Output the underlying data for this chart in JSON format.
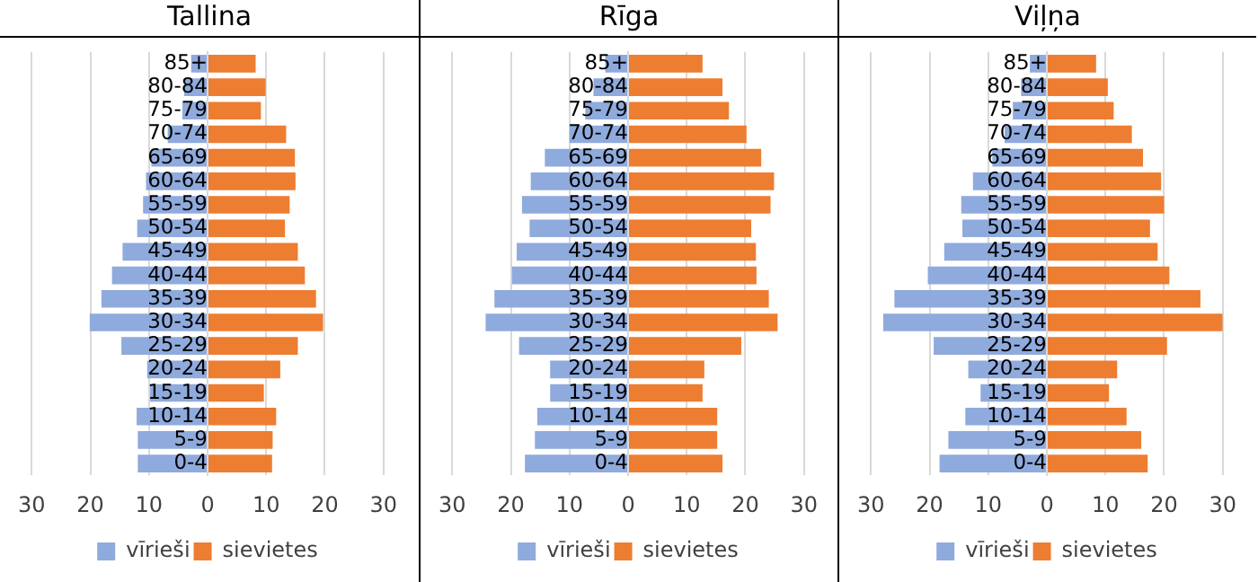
{
  "chart_data": [
    {
      "type": "bar",
      "orientation": "horizontal",
      "stacked": true,
      "title": "Tallina",
      "categories": [
        "85+",
        "80-84",
        "75-79",
        "70-74",
        "65-69",
        "60-64",
        "55-59",
        "50-54",
        "45-49",
        "40-44",
        "35-39",
        "30-34",
        "25-29",
        "20-24",
        "15-19",
        "10-14",
        "5-9",
        "0-4"
      ],
      "series": [
        {
          "name": "vīrieši",
          "color": "#8faadc",
          "values": [
            -2.8,
            -4,
            -4.3,
            -6.8,
            -9.6,
            -10.5,
            -11,
            -12,
            -14.5,
            -16.3,
            -18.1,
            -20.1,
            -14.7,
            -10.3,
            -9.8,
            -12.1,
            -11.9,
            -11.9
          ]
        },
        {
          "name": "sievietes",
          "color": "#ed7d31",
          "values": [
            8.2,
            9.9,
            9.1,
            13.4,
            14.9,
            15,
            14,
            13.2,
            15.4,
            16.6,
            18.5,
            19.7,
            15.4,
            12.4,
            9.6,
            11.7,
            11.1,
            11
          ]
        }
      ],
      "xlim": [
        -30,
        30
      ],
      "xticks": [
        {
          "value": -30,
          "label": "30"
        },
        {
          "value": -20,
          "label": "20"
        },
        {
          "value": -10,
          "label": "10"
        },
        0,
        10,
        20,
        30
      ],
      "grid": "x",
      "legend": "bottom"
    },
    {
      "type": "bar",
      "orientation": "horizontal",
      "stacked": true,
      "title": "Rīga",
      "categories": [
        "85+",
        "80-84",
        "75-79",
        "70-74",
        "65-69",
        "60-64",
        "55-59",
        "50-54",
        "45-49",
        "40-44",
        "35-39",
        "30-34",
        "25-29",
        "20-24",
        "15-19",
        "10-14",
        "5-9",
        "0-4"
      ],
      "series": [
        {
          "name": "vīrieši",
          "color": "#8faadc",
          "values": [
            -3.9,
            -5.9,
            -7.3,
            -10,
            -14.2,
            -16.6,
            -18.1,
            -16.8,
            -19,
            -19.8,
            -22.8,
            -24.3,
            -18.6,
            -13.3,
            -13.3,
            -15.5,
            -15.9,
            -17.6
          ]
        },
        {
          "name": "sievietes",
          "color": "#ed7d31",
          "values": [
            12.7,
            16.1,
            17.2,
            20.2,
            22.7,
            24.9,
            24.3,
            21,
            21.8,
            21.9,
            24,
            25.5,
            19.3,
            13,
            12.7,
            15.2,
            15.2,
            16.1
          ]
        }
      ],
      "xlim": [
        -30,
        30
      ],
      "xticks": [
        {
          "value": -30,
          "label": "30"
        },
        {
          "value": -20,
          "label": "20"
        },
        {
          "value": -10,
          "label": "10"
        },
        0,
        10,
        20,
        30
      ],
      "grid": "x",
      "legend": "bottom"
    },
    {
      "type": "bar",
      "orientation": "horizontal",
      "stacked": true,
      "title": "Viļņa",
      "categories": [
        "85+",
        "80-84",
        "75-79",
        "70-74",
        "65-69",
        "60-64",
        "55-59",
        "50-54",
        "45-49",
        "40-44",
        "35-39",
        "30-34",
        "25-29",
        "20-24",
        "15-19",
        "10-14",
        "5-9",
        "0-4"
      ],
      "series": [
        {
          "name": "vīrieši",
          "color": "#8faadc",
          "values": [
            -2.9,
            -4.4,
            -5.8,
            -7.2,
            -9.3,
            -12.6,
            -14.6,
            -14.4,
            -17.5,
            -20.3,
            -26,
            -27.9,
            -19.3,
            -13.4,
            -11.3,
            -13.9,
            -16.8,
            -18.3
          ]
        },
        {
          "name": "sievietes",
          "color": "#ed7d31",
          "values": [
            8.4,
            10.4,
            11.4,
            14.5,
            16.4,
            19.5,
            20,
            17.6,
            18.9,
            20.9,
            26.2,
            30,
            20.5,
            12,
            10.6,
            13.6,
            16.1,
            17.2
          ]
        }
      ],
      "xlim": [
        -30,
        30
      ],
      "xticks": [
        {
          "value": -30,
          "label": "30"
        },
        {
          "value": -20,
          "label": "20"
        },
        {
          "value": -10,
          "label": "10"
        },
        0,
        10,
        20,
        30
      ],
      "grid": "x",
      "legend": "bottom"
    }
  ]
}
